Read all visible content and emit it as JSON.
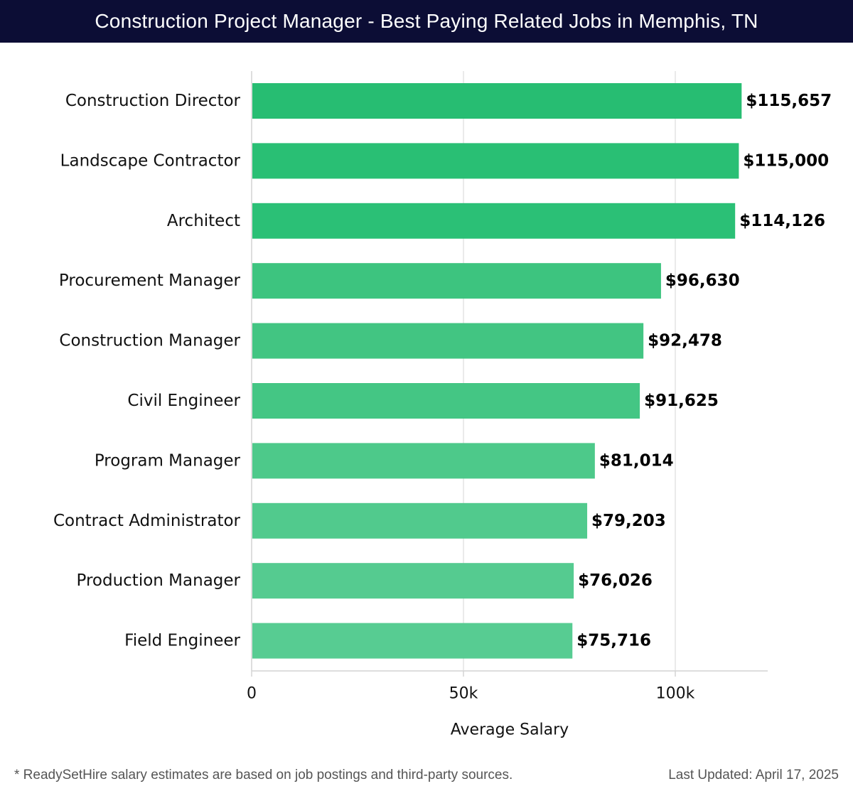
{
  "header": {
    "title": "Construction Project Manager - Best Paying Related Jobs in Memphis, TN"
  },
  "chart_data": {
    "type": "bar",
    "orientation": "horizontal",
    "title": "Construction Project Manager - Best Paying Related Jobs in Memphis, TN",
    "xlabel": "Average Salary",
    "ylabel": "",
    "categories": [
      "Construction Director",
      "Landscape Contractor",
      "Architect",
      "Procurement Manager",
      "Construction Manager",
      "Civil Engineer",
      "Program Manager",
      "Contract Administrator",
      "Production Manager",
      "Field Engineer"
    ],
    "values": [
      115657,
      115000,
      114126,
      96630,
      92478,
      91625,
      81014,
      79203,
      76026,
      75716
    ],
    "value_labels": [
      "$115,657",
      "$115,000",
      "$114,126",
      "$96,630",
      "$92,478",
      "$91,625",
      "$81,014",
      "$79,203",
      "$76,026",
      "$75,716"
    ],
    "xlim": [
      0,
      122000
    ],
    "xticks": [
      0,
      50000,
      100000
    ],
    "xtick_labels": [
      "0",
      "50k",
      "100k"
    ],
    "grid": true,
    "bar_colors": [
      "#27bd72",
      "#29bf74",
      "#2bc076",
      "#3dc47f",
      "#42c582",
      "#44c684",
      "#4dc98a",
      "#51ca8d",
      "#55cb90",
      "#57cc92"
    ],
    "grid_color": "#e3e3e3",
    "axis_color": "#d4d4d4"
  },
  "footer": {
    "note": "* ReadySetHire salary estimates are based on job postings and third-party sources.",
    "updated": "Last Updated: April 17, 2025"
  }
}
